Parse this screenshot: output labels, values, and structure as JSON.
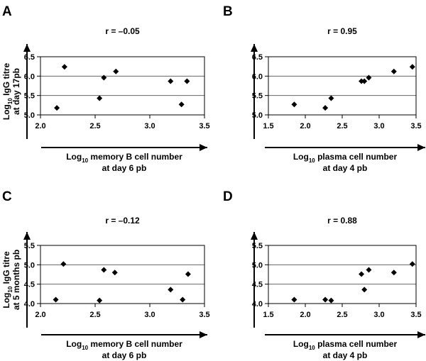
{
  "panels": [
    {
      "letter": "A",
      "r_label": "r = –0.05",
      "ylabel": [
        "Log",
        "10",
        " IgG titre",
        "at day 17pb"
      ],
      "xlabel": [
        "Log",
        "10",
        " memory B cell number",
        "at day 6 pb"
      ]
    },
    {
      "letter": "B",
      "r_label": "r = 0.95",
      "ylabel": [],
      "xlabel": [
        "Log",
        "10",
        " plasma cell number",
        "at day 4 pb"
      ]
    },
    {
      "letter": "C",
      "r_label": "r = –0.12",
      "ylabel": [
        "Log",
        "10",
        " IgG titre",
        "at 5 months pb"
      ],
      "xlabel": [
        "Log",
        "10",
        " memory B cell number",
        "at day 6 pb"
      ]
    },
    {
      "letter": "D",
      "r_label": "r = 0.88",
      "ylabel": [],
      "xlabel": [
        "Log",
        "10",
        " plasma cell number",
        "at day 4 pb"
      ]
    }
  ],
  "chart_data": [
    {
      "type": "scatter",
      "title": "r = –0.05",
      "xlabel": "Log10 memory B cell number at day 6 pb",
      "ylabel": "Log10 IgG titre at day 17pb",
      "xlim": [
        2.0,
        3.5
      ],
      "ylim": [
        5.0,
        6.5
      ],
      "xticks": [
        "2.0",
        "2.5",
        "3.0",
        "3.5"
      ],
      "yticks": [
        "5.0",
        "5.5",
        "6.0",
        "6.5"
      ],
      "gridlines": "horizontal",
      "x": [
        2.15,
        2.22,
        2.54,
        2.58,
        2.69,
        3.19,
        3.29,
        3.34
      ],
      "y": [
        5.18,
        6.24,
        5.43,
        5.96,
        6.12,
        5.87,
        5.27,
        5.87
      ]
    },
    {
      "type": "scatter",
      "title": "r = 0.95",
      "xlabel": "Log10 plasma cell number at day 4 pb",
      "ylabel": "",
      "xlim": [
        1.5,
        3.5
      ],
      "ylim": [
        5.0,
        6.5
      ],
      "xticks": [
        "1.5",
        "2.0",
        "2.5",
        "3.0",
        "3.5"
      ],
      "yticks": [
        "5.0",
        "5.5",
        "6.0",
        "6.5"
      ],
      "gridlines": "horizontal",
      "x": [
        1.85,
        2.27,
        2.35,
        2.76,
        2.8,
        2.86,
        3.2,
        3.45
      ],
      "y": [
        5.27,
        5.18,
        5.43,
        5.87,
        5.87,
        5.96,
        6.12,
        6.24
      ]
    },
    {
      "type": "scatter",
      "title": "r = –0.12",
      "xlabel": "Log10 memory B cell number at day 6 pb",
      "ylabel": "Log10 IgG titre at 5 months pb",
      "xlim": [
        2.0,
        3.5
      ],
      "ylim": [
        4.0,
        5.5
      ],
      "xticks": [
        "2.0",
        "2.5",
        "3.0",
        "3.5"
      ],
      "yticks": [
        "4.0",
        "4.5",
        "5.0",
        "5.5"
      ],
      "gridlines": "horizontal",
      "x": [
        2.14,
        2.21,
        2.54,
        2.58,
        2.68,
        3.19,
        3.3,
        3.35
      ],
      "y": [
        4.1,
        5.02,
        4.08,
        4.87,
        4.8,
        4.36,
        4.1,
        4.76
      ]
    },
    {
      "type": "scatter",
      "title": "r = 0.88",
      "xlabel": "Log10 plasma cell number at day 4 pb",
      "ylabel": "",
      "xlim": [
        1.5,
        3.5
      ],
      "ylim": [
        4.0,
        5.5
      ],
      "xticks": [
        "1.5",
        "2.0",
        "2.5",
        "3.0",
        "3.5"
      ],
      "yticks": [
        "4.0",
        "4.5",
        "5.0",
        "5.5"
      ],
      "gridlines": "horizontal",
      "x": [
        1.85,
        2.27,
        2.35,
        2.76,
        2.8,
        2.86,
        3.2,
        3.45
      ],
      "y": [
        4.1,
        4.1,
        4.08,
        4.76,
        4.36,
        4.87,
        4.8,
        5.02
      ]
    }
  ]
}
